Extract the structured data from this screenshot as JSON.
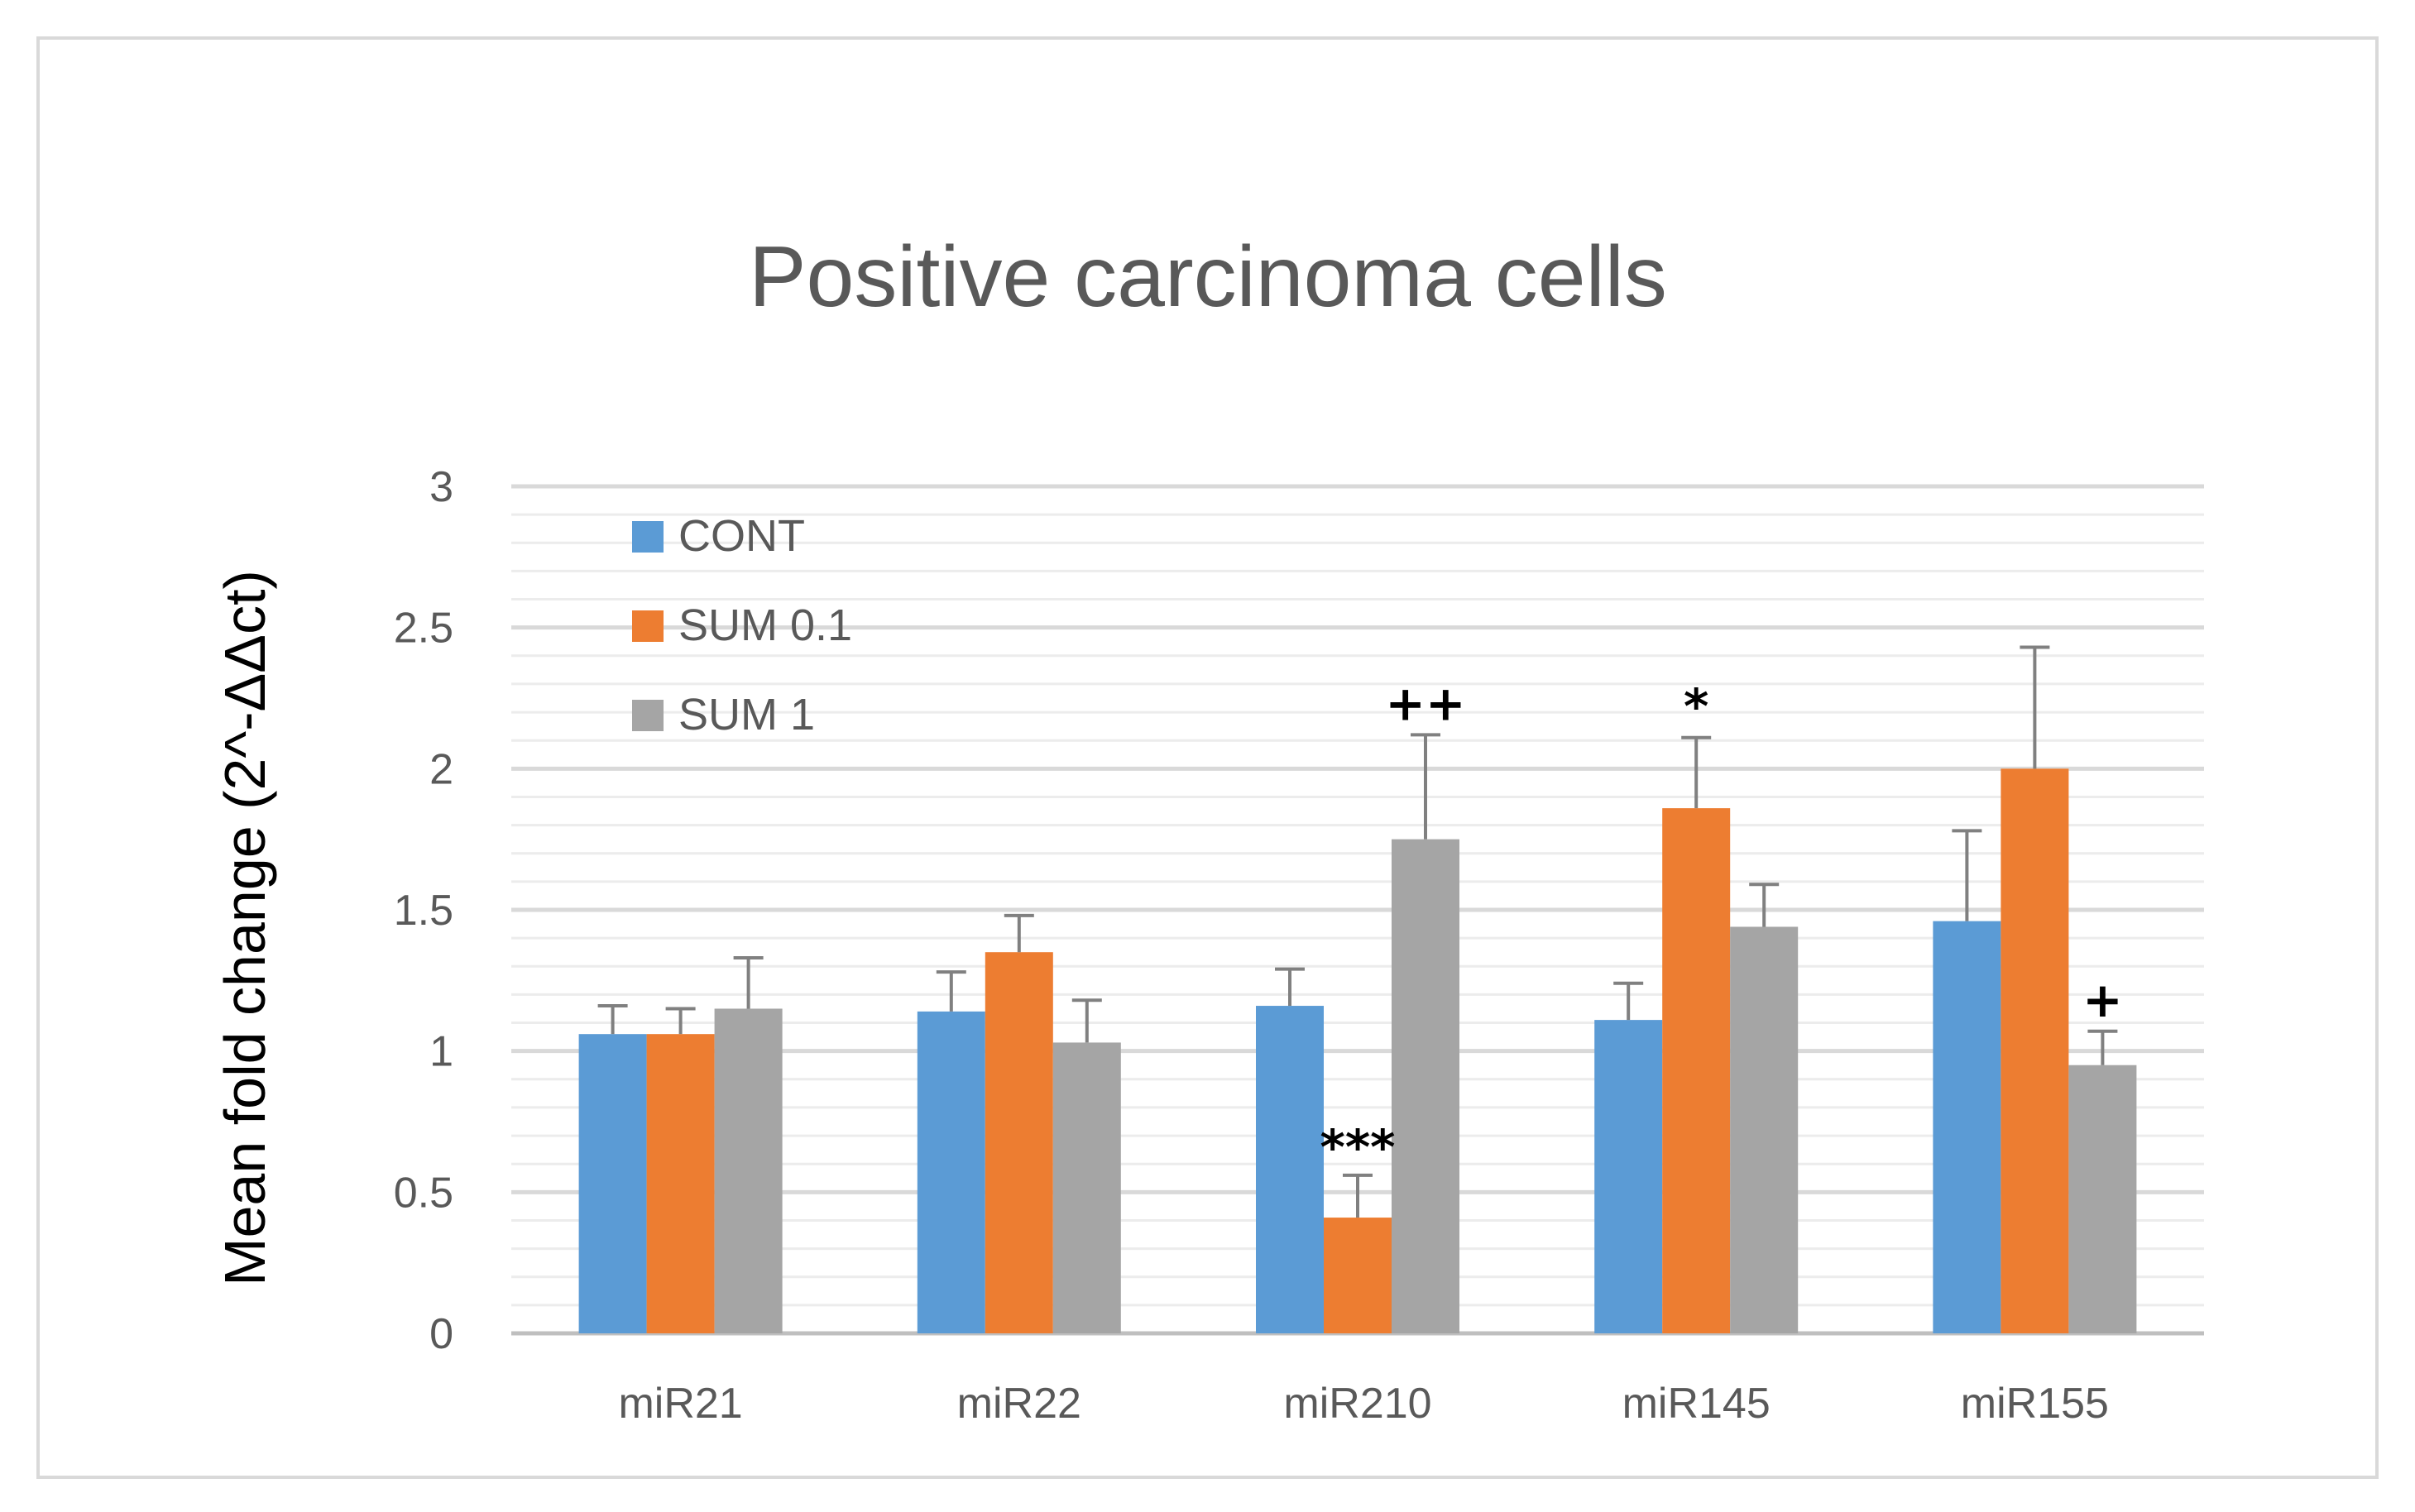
{
  "chart_data": {
    "type": "bar",
    "title": "Positive carcinoma cells",
    "ylabel": "Mean fold change (2^-ΔΔct)",
    "xlabel": "",
    "categories": [
      "miR21",
      "miR22",
      "miR210",
      "miR145",
      "miR155"
    ],
    "ylim": [
      0,
      3
    ],
    "yticks": [
      0,
      0.5,
      1,
      1.5,
      2,
      2.5,
      3
    ],
    "ytick_labels": [
      "0",
      "0.5",
      "1",
      "1.5",
      "2",
      "2.5",
      "3"
    ],
    "grid": true,
    "legend_position": "top-left",
    "series": [
      {
        "name": "CONT",
        "color": "#5b9bd5",
        "values": [
          1.06,
          1.14,
          1.16,
          1.11,
          1.46
        ],
        "errors": [
          0.1,
          0.14,
          0.13,
          0.13,
          0.32
        ]
      },
      {
        "name": "SUM 0.1",
        "color": "#ed7d31",
        "values": [
          1.06,
          1.35,
          0.41,
          1.86,
          2.0
        ],
        "errors": [
          0.09,
          0.13,
          0.15,
          0.25,
          0.43
        ]
      },
      {
        "name": "SUM 1",
        "color": "#a5a5a5",
        "values": [
          1.15,
          1.03,
          1.75,
          1.44,
          0.95
        ],
        "errors": [
          0.18,
          0.15,
          0.37,
          0.15,
          0.12
        ]
      }
    ],
    "annotations": [
      {
        "category": "miR210",
        "series": "SUM 0.1",
        "text": "***"
      },
      {
        "category": "miR210",
        "series": "SUM 1",
        "text": "++"
      },
      {
        "category": "miR145",
        "series": "SUM 0.1",
        "text": "*"
      },
      {
        "category": "miR155",
        "series": "SUM 1",
        "text": "+"
      }
    ]
  }
}
